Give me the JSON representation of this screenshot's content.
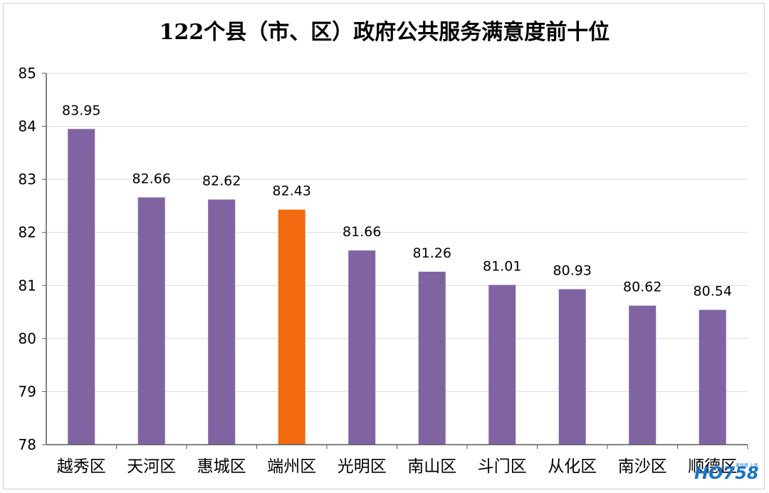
{
  "chart_data": {
    "type": "bar",
    "title": "122个县（市、区）政府公共服务满意度前十位",
    "categories": [
      "越秀区",
      "天河区",
      "惠城区",
      "端州区",
      "光明区",
      "南山区",
      "斗门区",
      "从化区",
      "南沙区",
      "顺德区"
    ],
    "values": [
      83.95,
      82.66,
      82.62,
      82.43,
      81.66,
      81.26,
      81.01,
      80.93,
      80.62,
      80.54
    ],
    "value_labels": [
      "83.95",
      "82.66",
      "82.62",
      "82.43",
      "81.66",
      "81.26",
      "81.01",
      "80.93",
      "80.62",
      "80.54"
    ],
    "ylim": [
      78,
      85
    ],
    "yticks": [
      "78",
      "79",
      "80",
      "81",
      "82",
      "83",
      "84",
      "85"
    ],
    "xlabel": "",
    "ylabel": "",
    "grid": true,
    "legend": "none",
    "colors": {
      "bar": "#8064a2",
      "highlight": "#f26a0f",
      "grid": "#d9d9d9",
      "axis": "#595959",
      "text": "#000000"
    },
    "highlight_index": 3
  },
  "watermark": {
    "text": "HO758",
    "tagline": "爱找房 上房网",
    "color": "#1a73c8"
  }
}
